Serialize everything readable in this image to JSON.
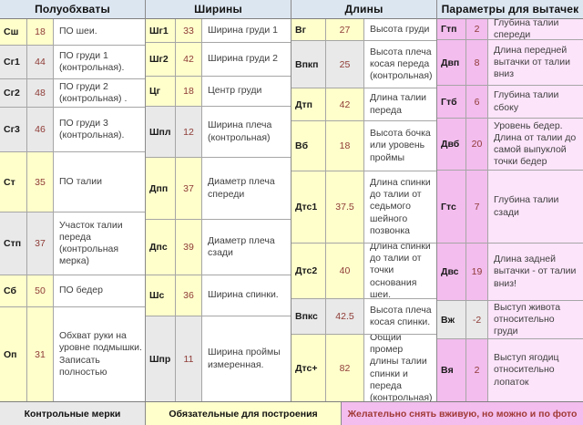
{
  "palette": {
    "header_bg": "#dce6f1",
    "yellow": "#ffffcc",
    "gray": "#e9e9e9",
    "pink": "#f3bdee",
    "pink_light": "#fce4fa",
    "white": "#ffffff",
    "code_text": "#1a1a1a",
    "value_text": "#8e3b36",
    "desc_text": "#404040",
    "footer_pink_text": "#a03a36"
  },
  "groups": [
    {
      "title": "Полуобхваты",
      "rows": [
        {
          "code": "Сш",
          "value": "18",
          "desc": "ПО шеи.",
          "tone": "yellow"
        },
        {
          "code": "Сг1",
          "value": "44",
          "desc": "ПО груди 1 (контрольная).",
          "tone": "gray"
        },
        {
          "code": "Сг2",
          "value": "48",
          "desc": "ПО груди 2 (контрольная) .",
          "tone": "gray"
        },
        {
          "code": "Сг3",
          "value": "46",
          "desc": "ПО груди 3 (контрольная).",
          "tone": "gray"
        },
        {
          "code": "Ст",
          "value": "35",
          "desc": "ПО талии",
          "tone": "yellow"
        },
        {
          "code": "Стп",
          "value": "37",
          "desc": "Участок талии переда (контрольная мерка)",
          "tone": "gray"
        },
        {
          "code": "Сб",
          "value": "50",
          "desc": "ПО бедер",
          "tone": "yellow"
        },
        {
          "code": "Оп",
          "value": "31",
          "desc": "Обхват руки на уровне подмышки. Записать полностью",
          "tone": "yellow"
        }
      ]
    },
    {
      "title": "Ширины",
      "rows": [
        {
          "code": "Шг1",
          "value": "33",
          "desc": "Ширина груди 1",
          "tone": "yellow"
        },
        {
          "code": "Шг2",
          "value": "42",
          "desc": "Ширина груди 2",
          "tone": "yellow"
        },
        {
          "code": "Цг",
          "value": "18",
          "desc": "Центр груди",
          "tone": "yellow"
        },
        {
          "code": "Шпл",
          "value": "12",
          "desc": "Ширина плеча (контрольная)",
          "tone": "gray"
        },
        {
          "code": "Дпп",
          "value": "37",
          "desc": "Диаметр плеча спереди",
          "tone": "yellow"
        },
        {
          "code": "Дпс",
          "value": "39",
          "desc": "Диаметр плеча сзади",
          "tone": "yellow"
        },
        {
          "code": "Шс",
          "value": "36",
          "desc": "Ширина спинки.",
          "tone": "yellow"
        },
        {
          "code": "Шпр",
          "value": "11",
          "desc": "Ширина проймы измеренная.",
          "tone": "gray"
        }
      ]
    },
    {
      "title": "Длины",
      "rows": [
        {
          "code": "Вг",
          "value": "27",
          "desc": "Высота груди",
          "tone": "yellow"
        },
        {
          "code": "Впкп",
          "value": "25",
          "desc": "Высота плеча косая переда (контрольная)",
          "tone": "gray"
        },
        {
          "code": "Дтп",
          "value": "42",
          "desc": "Длина талии переда",
          "tone": "yellow"
        },
        {
          "code": "Вб",
          "value": "18",
          "desc": "Высота бочка или уровень проймы",
          "tone": "yellow"
        },
        {
          "code": "Дтс1",
          "value": "37.5",
          "desc": "Длина спинки до талии от седьмого шейного позвонка",
          "tone": "yellow"
        },
        {
          "code": "Дтс2",
          "value": "40",
          "desc": "Длина спинки до талии от точки основания шеи.",
          "tone": "yellow"
        },
        {
          "code": "Впкс",
          "value": "42.5",
          "desc": "Высота плеча косая спинки.",
          "tone": "gray"
        },
        {
          "code": "Дтс+",
          "value": "82",
          "desc": "Общий промер длины талии спинки и переда (контрольная)",
          "tone": "yellow"
        }
      ]
    },
    {
      "title": "Параметры для вытачек",
      "rows": [
        {
          "code": "Гтп",
          "value": "2",
          "desc": "Глубина талии спереди",
          "tone": "pink"
        },
        {
          "code": "Двп",
          "value": "8",
          "desc": "Длина передней вытачки от талии вниз",
          "tone": "pink"
        },
        {
          "code": "Гтб",
          "value": "6",
          "desc": "Глубина талии сбоку",
          "tone": "pink"
        },
        {
          "code": "Двб",
          "value": "20",
          "desc": "Уровень бедер. Длина от талии до самой выпуклой точки бедер",
          "tone": "pink"
        },
        {
          "code": "Гтс",
          "value": "7",
          "desc": "Глубина талии сзади",
          "tone": "pink"
        },
        {
          "code": "Двс",
          "value": "19",
          "desc": "Длина задней вытачки - от талии вниз!",
          "tone": "pink"
        },
        {
          "code": "Вж",
          "value": "-2",
          "desc": "Выступ живота относительно груди",
          "tone": "gray"
        },
        {
          "code": "Вя",
          "value": "2",
          "desc": "Выступ ягодиц относительно лопаток",
          "tone": "pink"
        }
      ]
    }
  ],
  "footer": [
    {
      "label": "Контрольные мерки",
      "tone": "gray"
    },
    {
      "label": "Обязательные для построения",
      "tone": "yellow"
    },
    {
      "label": "Желательно снять вживую, но можно и по фото",
      "tone": "pink"
    }
  ]
}
